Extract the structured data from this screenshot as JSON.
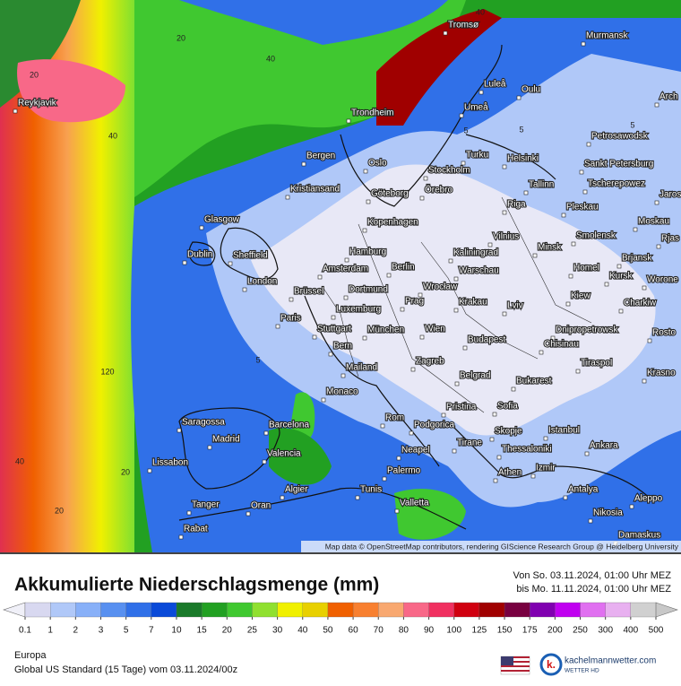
{
  "header": {
    "title": "Akkumulierte Niederschlagsmenge (mm)",
    "from": "Von So. 03.11.2024, 01:00 Uhr MEZ",
    "to": "bis Mo. 11.11.2024, 01:00 Uhr MEZ"
  },
  "map": {
    "attribution": "Map data © OpenStreetMap contributors, rendering GIScience Research Group @ Heidelberg University",
    "cities": [
      "Tromsø",
      "Murmansk",
      "Reykjavik",
      "Luleå",
      "Oulu",
      "Umeå",
      "Trondheim",
      "Arch",
      "Petrosawodsk",
      "Bergen",
      "Oslo",
      "Turku",
      "Helsinki",
      "Stockholm",
      "Sankt Petersburg",
      "Kristiansand",
      "Göteborg",
      "Örebro",
      "Tallinn",
      "Tscherepowez",
      "Jaros",
      "Glasgow",
      "Riga",
      "Pleskau",
      "Kopenhagen",
      "Moskau",
      "Dublin",
      "Sheffield",
      "Vilnius",
      "Smolensk",
      "Rjas",
      "Hamburg",
      "Kaliningrad",
      "Minsk",
      "Brjansk",
      "Amsterdam",
      "Berlin",
      "Warschau",
      "Homel",
      "Kursk",
      "Worone",
      "London",
      "Brüssel",
      "Dortmund",
      "Wrocław",
      "Krakau",
      "Prag",
      "Kiew",
      "Charkiw",
      "Luxemburg",
      "Lviv",
      "Paris",
      "Stuttgart",
      "München",
      "Wien",
      "Dnipropetrowsk",
      "Rosto",
      "Bern",
      "Budapest",
      "Chisinau",
      "Tiraspol",
      "Mailand",
      "Zagreb",
      "Krasno",
      "Belgrad",
      "Bukarest",
      "Monaco",
      "Pristina",
      "Sofia",
      "Saragossa",
      "Barcelona",
      "Rom",
      "Podgorica",
      "Istanbul",
      "Madrid",
      "Skopje",
      "Tirane",
      "Thessaloniki",
      "Ankara",
      "Neapel",
      "Lissabon",
      "Valencia",
      "Izmir",
      "Athen",
      "Palermo",
      "Algier",
      "Tunis",
      "Antalya",
      "Aleppo",
      "Tanger",
      "Oran",
      "Valletta",
      "Nikosia",
      "Rabat",
      "Damaskus"
    ],
    "contour_labels": [
      "40",
      "20",
      "20",
      "40",
      "40",
      "120",
      "40",
      "20",
      "20",
      "5",
      "5",
      "5",
      "5"
    ]
  },
  "legend": {
    "levels": [
      0.1,
      1,
      2,
      3,
      5,
      7,
      10,
      15,
      20,
      25,
      30,
      40,
      50,
      60,
      70,
      80,
      90,
      100,
      125,
      150,
      175,
      200,
      250,
      300,
      400,
      500
    ],
    "colors": [
      "#d8d8f0",
      "#b0c8f8",
      "#88b0f8",
      "#5890f0",
      "#3070e8",
      "#0a4ad8",
      "#1a7a2a",
      "#22a022",
      "#40c830",
      "#90e030",
      "#f0f000",
      "#e8d000",
      "#f06000",
      "#f88030",
      "#f8a870",
      "#f86888",
      "#f03060",
      "#d00010",
      "#a00000",
      "#780040",
      "#8000b0",
      "#c000f0",
      "#e070f0",
      "#e8b0f0",
      "#d0d0d0"
    ],
    "below_color": "#f0f0f8",
    "above_color": "#c8c8c8"
  },
  "footer": {
    "region": "Europa",
    "model": "Global US Standard (15 Tage) vom 03.11.2024/00z",
    "brand": "kachelmannwetter.com",
    "brand_sub": "WETTER HD"
  }
}
